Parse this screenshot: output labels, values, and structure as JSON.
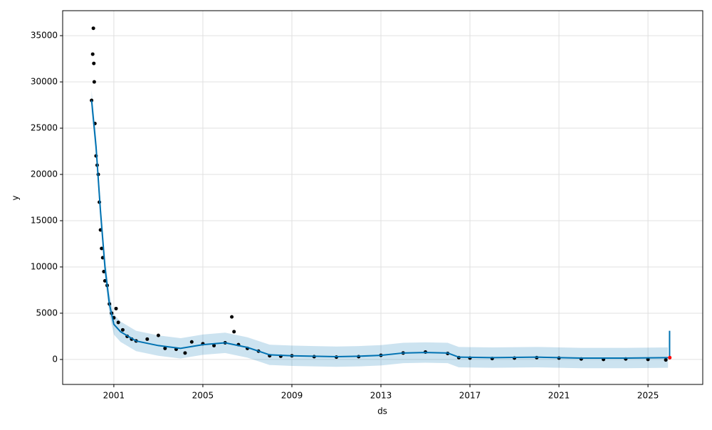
{
  "chart_data": {
    "type": "forecast",
    "x_label": "ds",
    "y_label": "y",
    "xlim": [
      1998.7,
      2027.46
    ],
    "ylim": [
      -2700,
      37700
    ],
    "xticks": [
      2001,
      2005,
      2009,
      2013,
      2017,
      2021,
      2025
    ],
    "yticks": [
      0,
      5000,
      10000,
      15000,
      20000,
      25000,
      30000,
      35000
    ],
    "grid": true,
    "series": [
      {
        "type": "area",
        "color": "#0072B2",
        "x": [
          2000.0,
          2000.2,
          2000.4,
          2000.6,
          2000.8,
          2001.0,
          2001.3,
          2002.0,
          2003.0,
          2004.0,
          2005.0,
          2006.0,
          2007.0,
          2008.0,
          2009.0,
          2010.0,
          2011.0,
          2012.0,
          2013.0,
          2014.0,
          2015.0,
          2016.0,
          2016.5,
          2018.0,
          2020.0,
          2022.0,
          2024.0,
          2025.9
        ],
        "lower": [
          26900,
          21900,
          14900,
          8900,
          4900,
          2700,
          1900,
          900,
          400,
          100,
          500,
          700,
          200,
          -600,
          -700,
          -750,
          -800,
          -750,
          -650,
          -400,
          -350,
          -400,
          -850,
          -900,
          -850,
          -950,
          -950,
          -900
        ],
        "upper": [
          29100,
          24100,
          17100,
          11100,
          7100,
          4900,
          4100,
          3100,
          2600,
          2300,
          2700,
          2900,
          2400,
          1600,
          1500,
          1450,
          1400,
          1450,
          1550,
          1800,
          1850,
          1800,
          1350,
          1300,
          1350,
          1250,
          1250,
          1300
        ]
      },
      {
        "type": "scatter",
        "color": "#000000",
        "x": [
          2000.0,
          2000.05,
          2000.08,
          2000.1,
          2000.12,
          2000.15,
          2000.2,
          2000.25,
          2000.3,
          2000.35,
          2000.4,
          2000.45,
          2000.5,
          2000.55,
          2000.6,
          2000.7,
          2000.8,
          2000.9,
          2001.0,
          2001.1,
          2001.2,
          2001.4,
          2001.6,
          2001.8,
          2002.0,
          2002.5,
          2003.0,
          2003.3,
          2003.8,
          2004.2,
          2004.5,
          2005.0,
          2005.5,
          2006.0,
          2006.3,
          2006.4,
          2006.6,
          2007.0,
          2007.5,
          2008.0,
          2008.5,
          2009.0,
          2010.0,
          2011.0,
          2012.0,
          2013.0,
          2014.0,
          2015.0,
          2016.0,
          2016.5,
          2017.0,
          2018.0,
          2019.0,
          2020.0,
          2021.0,
          2022.0,
          2023.0,
          2024.0,
          2025.0,
          2025.8
        ],
        "values": [
          28000,
          33000,
          35800,
          32000,
          30000,
          25500,
          22000,
          21000,
          20000,
          17000,
          14000,
          12000,
          11000,
          9500,
          8500,
          8000,
          6000,
          5000,
          4500,
          5500,
          4000,
          3200,
          2500,
          2200,
          2000,
          2200,
          2600,
          1200,
          1100,
          700,
          1900,
          1700,
          1500,
          1800,
          4600,
          3000,
          1600,
          1200,
          900,
          400,
          350,
          400,
          300,
          250,
          300,
          450,
          700,
          800,
          650,
          200,
          150,
          100,
          150,
          200,
          150,
          50,
          0,
          50,
          0,
          -50
        ]
      },
      {
        "type": "line",
        "color": "#0072B2",
        "x": [
          2000.0,
          2000.2,
          2000.4,
          2000.6,
          2000.8,
          2001.0,
          2001.3,
          2002.0,
          2003.0,
          2004.0,
          2005.0,
          2006.0,
          2007.0,
          2008.0,
          2009.0,
          2010.0,
          2011.0,
          2012.0,
          2013.0,
          2014.0,
          2015.0,
          2016.0,
          2016.5,
          2018.0,
          2020.0,
          2022.0,
          2024.0,
          2025.9
        ],
        "values": [
          28000,
          23000,
          16000,
          10000,
          6000,
          3800,
          3000,
          2000,
          1500,
          1200,
          1600,
          1800,
          1300,
          500,
          400,
          350,
          300,
          350,
          450,
          700,
          750,
          700,
          250,
          200,
          250,
          150,
          150,
          200
        ]
      },
      {
        "type": "line",
        "color": "#0072B2",
        "x": [
          2025.97,
          2025.97
        ],
        "values": [
          0,
          3100
        ]
      },
      {
        "type": "scatter",
        "color": "#ff0000",
        "x": [
          2025.98
        ],
        "values": [
          200
        ]
      }
    ]
  }
}
